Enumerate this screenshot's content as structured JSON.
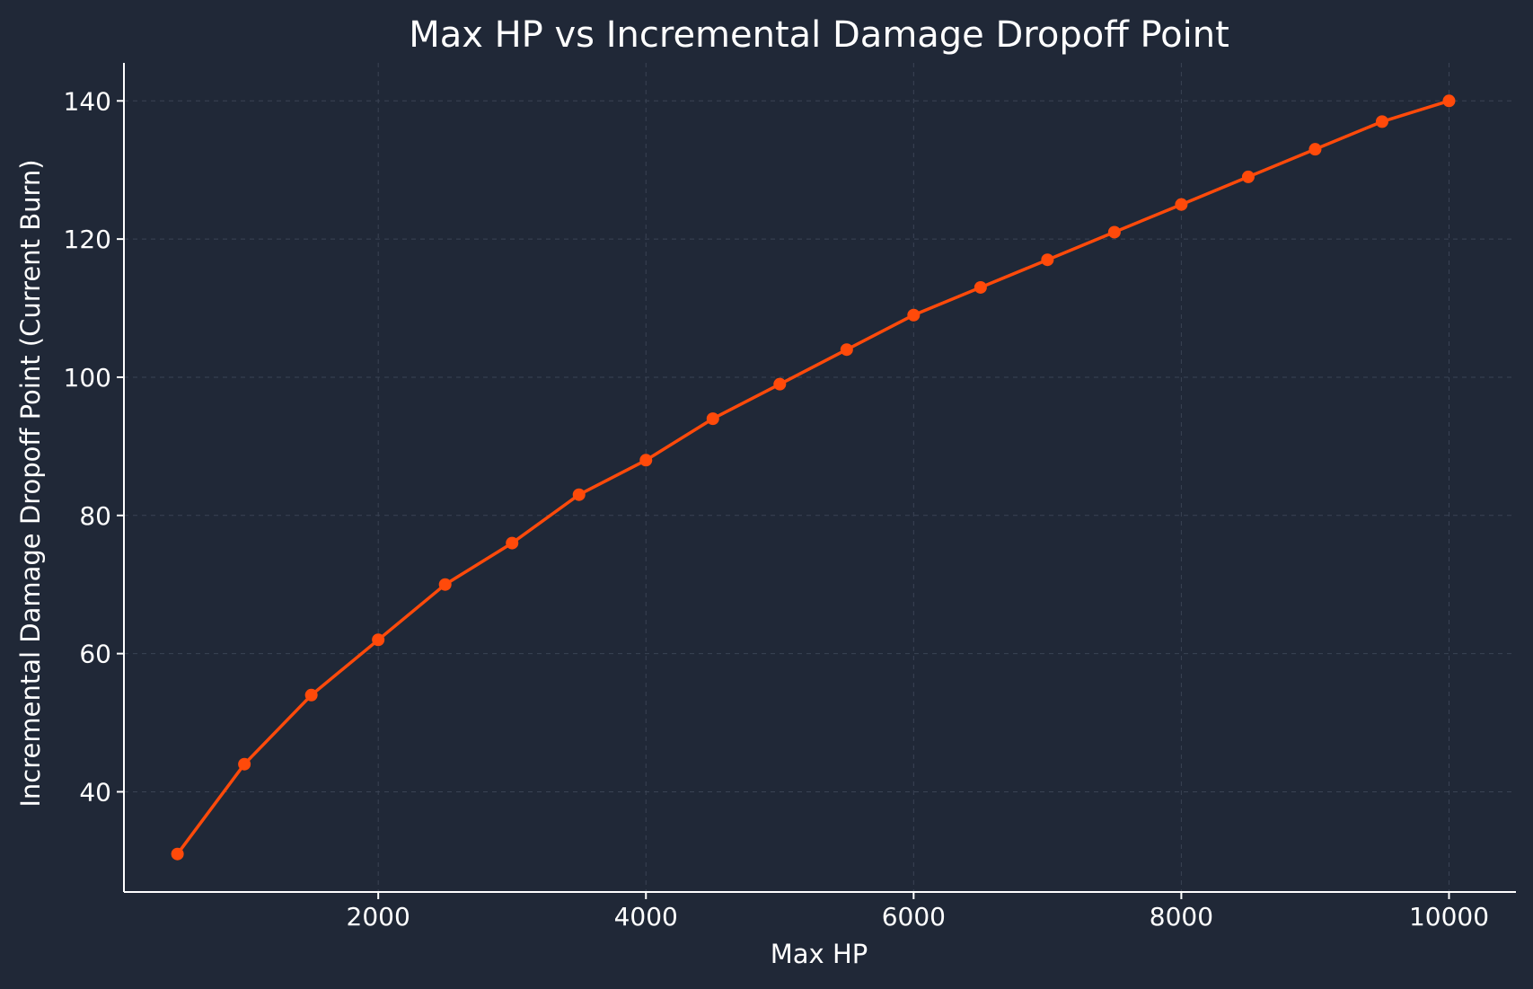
{
  "colors": {
    "background": "#202837",
    "text": "#ffffff",
    "axis": "#ffffff",
    "grid": "#3a4354",
    "series": "#ff4a0a"
  },
  "chart_data": {
    "type": "line",
    "title": "Max HP vs Incremental Damage Dropoff Point",
    "xlabel": "Max HP",
    "ylabel": "Incremental Damage Dropoff Point (Current Burn)",
    "xlim": [
      100,
      10500
    ],
    "ylim": [
      25.5,
      145.5
    ],
    "xticks": [
      2000,
      4000,
      6000,
      8000,
      10000
    ],
    "yticks": [
      40,
      60,
      80,
      100,
      120,
      140
    ],
    "xtick_labels": [
      "2000",
      "4000",
      "6000",
      "8000",
      "10000"
    ],
    "ytick_labels": [
      "40",
      "60",
      "80",
      "100",
      "120",
      "140"
    ],
    "grid": true,
    "series": [
      {
        "x": [
          500,
          1000,
          1500,
          2000,
          2500,
          3000,
          3500,
          4000,
          4500,
          5000,
          5500,
          6000,
          6500,
          7000,
          7500,
          8000,
          8500,
          9000,
          9500,
          10000
        ],
        "y": [
          31,
          44,
          54,
          62,
          70,
          76,
          83,
          88,
          94,
          99,
          104,
          109,
          113,
          117,
          121,
          125,
          129,
          133,
          137,
          140
        ]
      }
    ]
  }
}
